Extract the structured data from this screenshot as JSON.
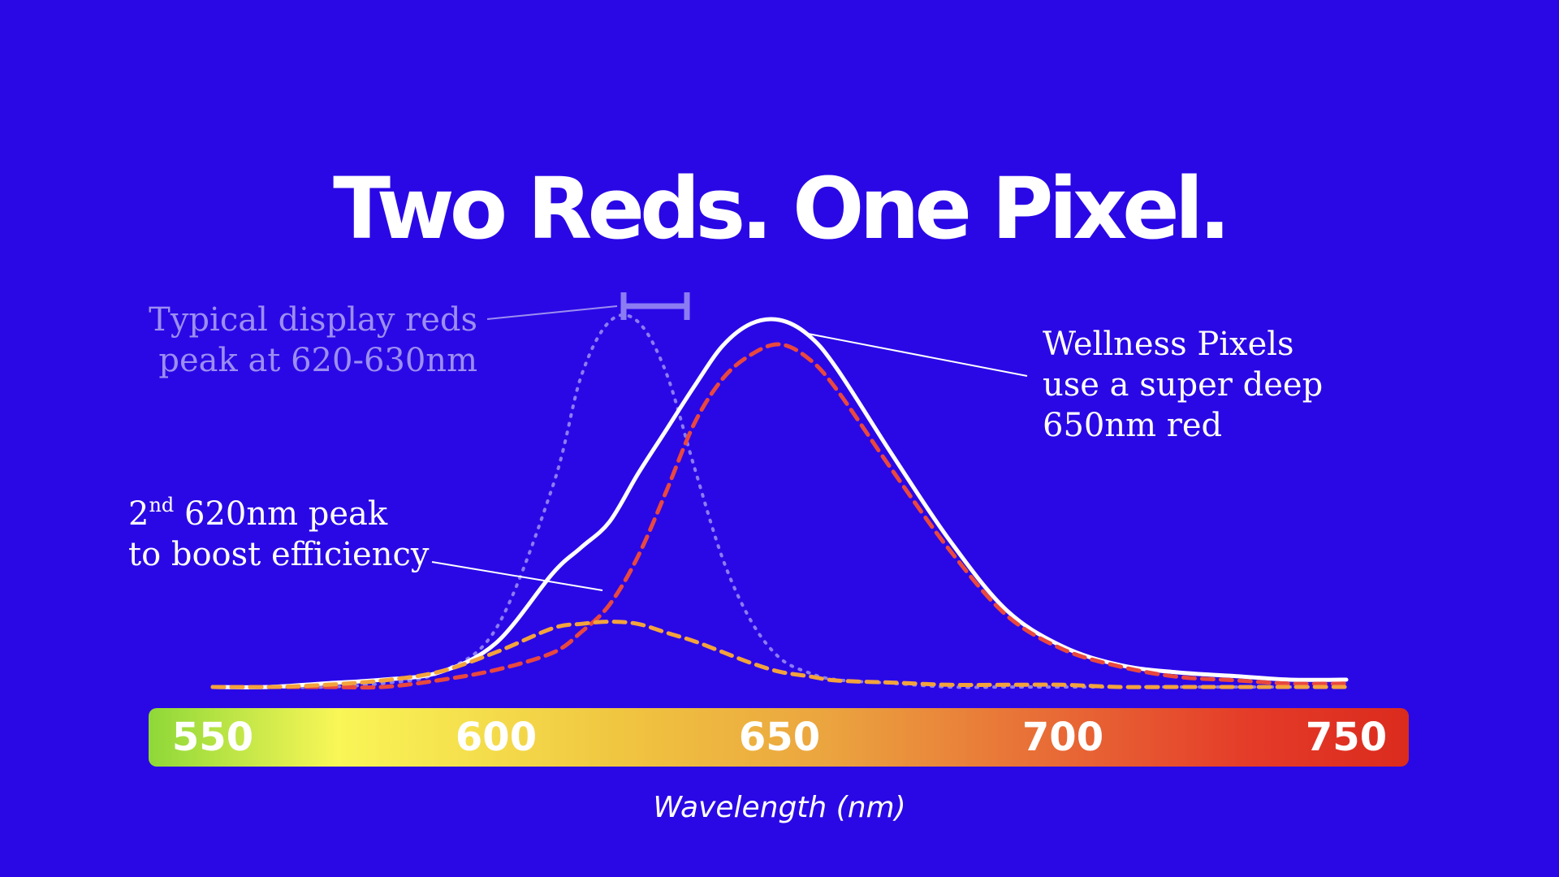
{
  "chart_data": {
    "type": "line",
    "title": "Two Reds. One Pixel.",
    "xlabel": "Wavelength (nm)",
    "ylabel": "",
    "xlim": [
      550,
      750
    ],
    "x_ticks": [
      550,
      600,
      650,
      700,
      750
    ],
    "grid": false,
    "legend": "none",
    "x": [
      550,
      560,
      570,
      580,
      590,
      600,
      610,
      615,
      620,
      625,
      630,
      635,
      640,
      645,
      650,
      655,
      660,
      670,
      680,
      690,
      700,
      710,
      720,
      730,
      740,
      750
    ],
    "series": [
      {
        "style": "dotted",
        "color": "#8c7cf2",
        "values": [
          0.0,
          0.0,
          0.0,
          0.01,
          0.04,
          0.16,
          0.55,
          0.85,
          1.0,
          1.0,
          0.86,
          0.6,
          0.35,
          0.18,
          0.08,
          0.04,
          0.02,
          0.01,
          0.0,
          0.0,
          0.0,
          0.0,
          0.0,
          0.0,
          0.0,
          0.0
        ]
      },
      {
        "style": "solid",
        "color": "#ffffff",
        "values": [
          0.0,
          0.0,
          0.01,
          0.02,
          0.04,
          0.12,
          0.31,
          0.38,
          0.45,
          0.58,
          0.7,
          0.82,
          0.93,
          0.99,
          1.0,
          0.96,
          0.87,
          0.63,
          0.4,
          0.21,
          0.11,
          0.06,
          0.04,
          0.03,
          0.02,
          0.02
        ]
      },
      {
        "style": "dashed",
        "color": "#e9483e",
        "values": [
          0.0,
          0.0,
          0.0,
          0.0,
          0.02,
          0.05,
          0.1,
          0.16,
          0.24,
          0.38,
          0.57,
          0.77,
          0.9,
          0.97,
          1.0,
          0.96,
          0.87,
          0.63,
          0.4,
          0.21,
          0.11,
          0.06,
          0.03,
          0.02,
          0.01,
          0.01
        ]
      },
      {
        "style": "dashed",
        "color": "#f3a33c",
        "values": [
          0.0,
          0.0,
          0.01,
          0.03,
          0.07,
          0.16,
          0.27,
          0.29,
          0.3,
          0.29,
          0.25,
          0.21,
          0.16,
          0.11,
          0.07,
          0.05,
          0.03,
          0.02,
          0.01,
          0.01,
          0.01,
          0.0,
          0.0,
          0.0,
          0.0,
          0.0
        ]
      }
    ],
    "annotations": {
      "typical": [
        "Typical display reds",
        "peak at 620-630nm"
      ],
      "wellness": [
        "Wellness Pixels",
        "use a super deep",
        "650nm red"
      ],
      "second_line1_pre": "2",
      "second_line1_sup": "nd",
      "second_line1_post": " 620nm peak",
      "second_line2": "to boost efficiency"
    },
    "spectrum_colors": [
      "#8ed838",
      "#f9f657",
      "#f0c440",
      "#eba43f",
      "#e86a36",
      "#e43a28",
      "#db2b1e"
    ]
  }
}
